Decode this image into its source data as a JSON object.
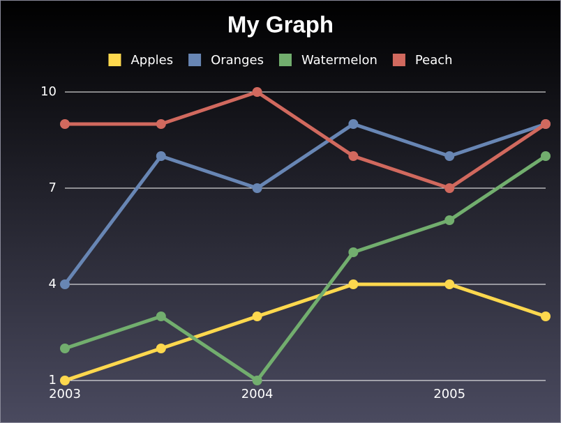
{
  "chart_data": {
    "type": "line",
    "title": "My Graph",
    "categories": [
      "2003",
      null,
      "2004",
      null,
      "2005",
      null
    ],
    "series": [
      {
        "name": "Apples",
        "color": "#fdd84e",
        "values": [
          1,
          2,
          3,
          4,
          4,
          3
        ]
      },
      {
        "name": "Oranges",
        "color": "#6886b4",
        "values": [
          4,
          8,
          7,
          9,
          8,
          9
        ]
      },
      {
        "name": "Watermelon",
        "color": "#72ae6e",
        "values": [
          2,
          3,
          1,
          5,
          6,
          8
        ]
      },
      {
        "name": "Peach",
        "color": "#d1695e",
        "values": [
          9,
          9,
          10,
          8,
          7,
          9
        ]
      }
    ],
    "ylim": [
      1,
      10
    ],
    "yticks": [
      1,
      4,
      7,
      10
    ],
    "grid": true,
    "legend": "top"
  }
}
